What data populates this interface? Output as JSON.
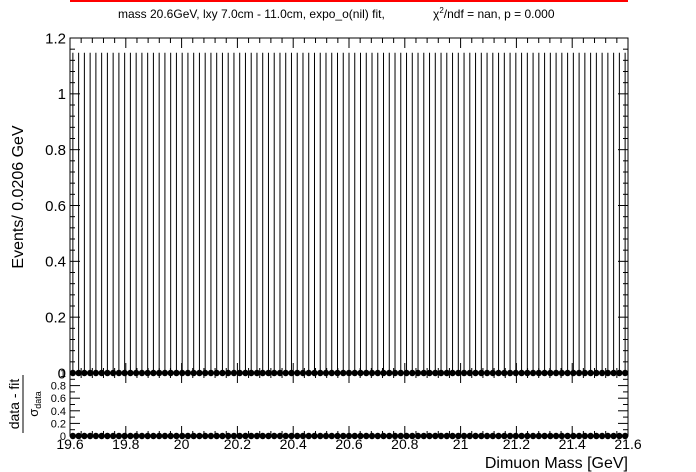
{
  "title": "mass 20.6GeV, lxy 7.0cm - 11.0cm, expo_o(nil) fit,",
  "fit_stat": {
    "chi": "χ",
    "sup": "2",
    "rest": "/ndf = nan, p = 0.000"
  },
  "colors": {
    "title_bar": "#ff0000",
    "axis": "#000000",
    "data": "#000000"
  },
  "chart_data": [
    {
      "type": "scatter",
      "panel": "main",
      "xlabel": "",
      "ylabel": "Events/ 0.0206 GeV",
      "xlim": [
        19.6,
        21.6
      ],
      "ylim": [
        0,
        1.2
      ],
      "yticks": [
        0,
        0.2,
        0.4,
        0.6,
        0.8,
        1,
        1.2
      ],
      "yticklabels": [
        "0",
        "0.2",
        "0.4",
        "0.6",
        "0.8",
        "1",
        "1.2"
      ],
      "bin_width": 0.0206,
      "n_bins": 97,
      "values_all_bins": 0,
      "error_bar_upper": 1.147,
      "legend": "none",
      "grid": false
    },
    {
      "type": "scatter",
      "panel": "pull",
      "xlabel": "Dimuon Mass [GeV]",
      "ylabel_num": "data - fit",
      "ylabel_den": "σ",
      "ylabel_den_sub": "data",
      "xlim": [
        19.6,
        21.6
      ],
      "ylim": [
        0,
        1
      ],
      "xticks": [
        19.6,
        19.8,
        20,
        20.2,
        20.4,
        20.6,
        20.8,
        21,
        21.2,
        21.4,
        21.6
      ],
      "xticklabels": [
        "19.6",
        "19.8",
        "20",
        "20.2",
        "20.4",
        "20.6",
        "20.8",
        "21",
        "21.2",
        "21.4",
        "21.6"
      ],
      "yticks": [
        0,
        0.2,
        0.4,
        0.6,
        0.8,
        1
      ],
      "yticklabels": [
        "0",
        "0.2",
        "0.4",
        "0.6",
        "0.8",
        "1"
      ],
      "values_all_bins": 0
    }
  ]
}
